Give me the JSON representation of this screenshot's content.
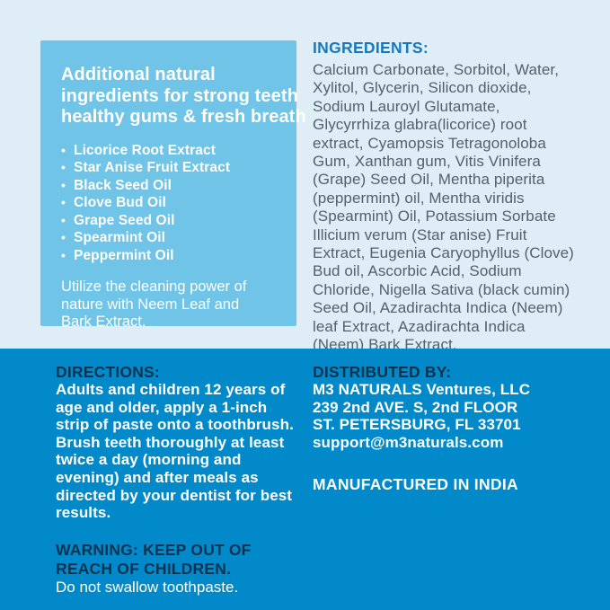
{
  "colors": {
    "page_bg": "#deedf6",
    "panel_bg": "#6fc4e8",
    "bottom_band_bg": "#0289ca",
    "ingredients_heading_blue": "#1778bb",
    "ingredients_body_slate": "#51616d",
    "navy_heading": "#0c3350",
    "white_text": "#ffffff"
  },
  "panel": {
    "heading_lines": [
      "Additional natural",
      "ingredients for strong teeth",
      "healthy gums & fresh breath"
    ],
    "bullet_glyph": "•",
    "bullets": [
      "Licorice Root Extract",
      "Star Anise Fruit Extract",
      "Black Seed Oil",
      "Clove Bud Oil",
      "Grape Seed Oil",
      "Spearmint Oil",
      "Peppermint Oil"
    ],
    "note": "Utilize the cleaning power of nature with Neem Leaf and Bark Extract."
  },
  "ingredients": {
    "heading": "INGREDIENTS:",
    "body": "Calcium Carbonate, Sorbitol, Water, Xylitol, Glycerin, Silicon dioxide, Sodium Lauroyl Glutamate, Glycyrrhiza glabra(licorice) root extract, Cyamopsis Tetragonoloba Gum, Xanthan gum, Vitis Vinifera (Grape) Seed Oil, Mentha piperita (peppermint) oil, Mentha viridis (Spearmint) Oil, Potassium Sorbate Illicium verum (Star anise) Fruit Extract, Eugenia Caryophyllus (Clove) Bud oil, Ascorbic Acid, Sodium Chloride, Nigella Sativa (black cumin) Seed Oil, Azadirachta Indica (Neem) leaf Extract, Azadirachta Indica (Neem) Bark Extract."
  },
  "directions": {
    "heading": "DIRECTIONS:",
    "body": "Adults and children 12 years of age and older, apply a 1-inch strip of paste onto a toothbrush. Brush teeth thoroughly at least twice a day (morning and evening) and after meals as directed by your dentist for best results."
  },
  "warning": {
    "heading": "WARNING: KEEP OUT OF REACH OF CHILDREN.",
    "body": "Do not swallow toothpaste."
  },
  "distributor": {
    "heading": "DISTRIBUTED BY:",
    "lines": [
      "M3 NATURALS Ventures, LLC",
      "239 2nd AVE. S, 2nd FLOOR",
      "ST. PETERSBURG, FL 33701",
      "support@m3naturals.com"
    ],
    "manufactured": "MANUFACTURED IN INDIA"
  }
}
